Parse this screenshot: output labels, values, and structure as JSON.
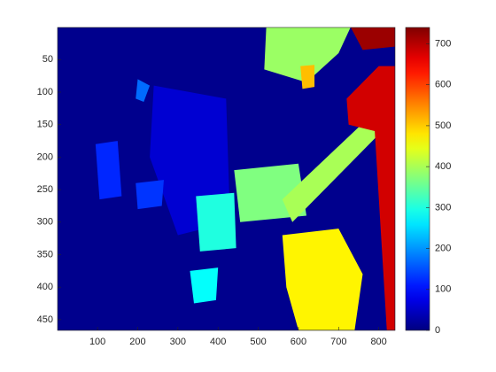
{
  "chart_data": {
    "type": "image",
    "xlim": [
      0.5,
      840.5
    ],
    "ylim": [
      0.5,
      466.5
    ],
    "xticks": [
      100,
      200,
      300,
      400,
      500,
      600,
      700,
      800
    ],
    "yticks": [
      50,
      100,
      150,
      200,
      250,
      300,
      350,
      400,
      450
    ],
    "colormap": "jet",
    "clim": [
      0,
      740
    ],
    "cticks": [
      0,
      100,
      200,
      300,
      400,
      500,
      600,
      700
    ],
    "background_value": 10,
    "regions": [
      {
        "value": 60,
        "points": [
          [
            240,
            90
          ],
          [
            420,
            110
          ],
          [
            430,
            300
          ],
          [
            300,
            320
          ],
          [
            230,
            200
          ]
        ]
      },
      {
        "value": 120,
        "points": [
          [
            95,
            180
          ],
          [
            150,
            175
          ],
          [
            160,
            260
          ],
          [
            105,
            265
          ]
        ]
      },
      {
        "value": 130,
        "points": [
          [
            195,
            240
          ],
          [
            265,
            235
          ],
          [
            260,
            275
          ],
          [
            200,
            280
          ]
        ]
      },
      {
        "value": 170,
        "points": [
          [
            200,
            80
          ],
          [
            230,
            90
          ],
          [
            215,
            115
          ],
          [
            195,
            110
          ]
        ]
      },
      {
        "value": 300,
        "points": [
          [
            345,
            260
          ],
          [
            440,
            255
          ],
          [
            445,
            340
          ],
          [
            355,
            345
          ]
        ]
      },
      {
        "value": 280,
        "points": [
          [
            330,
            375
          ],
          [
            400,
            370
          ],
          [
            395,
            420
          ],
          [
            340,
            425
          ]
        ]
      },
      {
        "value": 370,
        "points": [
          [
            440,
            220
          ],
          [
            600,
            210
          ],
          [
            620,
            290
          ],
          [
            455,
            300
          ]
        ]
      },
      {
        "value": 390,
        "points": [
          [
            520,
            0
          ],
          [
            730,
            0
          ],
          [
            700,
            40
          ],
          [
            620,
            85
          ],
          [
            515,
            65
          ]
        ]
      },
      {
        "value": 400,
        "points": [
          [
            560,
            265
          ],
          [
            825,
            110
          ],
          [
            840,
            140
          ],
          [
            585,
            300
          ]
        ]
      },
      {
        "value": 470,
        "points": [
          [
            560,
            320
          ],
          [
            700,
            310
          ],
          [
            760,
            380
          ],
          [
            740,
            466
          ],
          [
            600,
            466
          ],
          [
            570,
            400
          ]
        ]
      },
      {
        "value": 510,
        "points": [
          [
            605,
            60
          ],
          [
            640,
            58
          ],
          [
            640,
            92
          ],
          [
            610,
            95
          ]
        ]
      },
      {
        "value": 680,
        "points": [
          [
            720,
            110
          ],
          [
            800,
            60
          ],
          [
            840,
            60
          ],
          [
            840,
            466
          ],
          [
            820,
            466
          ],
          [
            790,
            160
          ],
          [
            725,
            150
          ]
        ]
      },
      {
        "value": 720,
        "points": [
          [
            730,
            0
          ],
          [
            840,
            0
          ],
          [
            840,
            30
          ],
          [
            760,
            35
          ]
        ]
      }
    ]
  }
}
